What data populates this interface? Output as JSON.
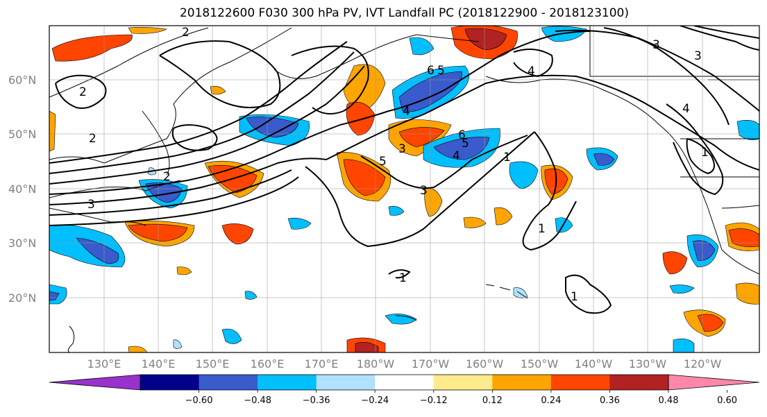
{
  "title": "2018122600 F030 300 hPa PV, IVT Landfall PC (2018122900 - 2018123100)",
  "lat_labels": [
    "60°N",
    "50°N",
    "40°N",
    "30°N",
    "20°N"
  ],
  "lon_labels": [
    "130°E",
    "140°E",
    "150°E",
    "160°E",
    "170°E",
    "180°W",
    "170°W",
    "160°W",
    "150°W",
    "140°W",
    "130°W",
    "120°W"
  ],
  "colorbar": {
    "colors": [
      "#9932CC",
      "#00008B",
      "#3A5BCB",
      "#00BFFF",
      "#B0E2FF",
      "#FFFFFF",
      "#FFEB8C",
      "#FFA500",
      "#FF4500",
      "#B22222",
      "#FF88AA"
    ],
    "tick_labels": [
      "−0.60",
      "−0.48",
      "−0.36",
      "−0.24",
      "−0.12",
      "0.12",
      "0.24",
      "0.36",
      "0.48",
      "0.60"
    ]
  },
  "contour_labels": [
    "2",
    "2",
    "2",
    "3",
    "5",
    "6",
    "6",
    "5",
    "4",
    "3",
    "4",
    "5",
    "3",
    "1",
    "1",
    "1",
    "1",
    "1",
    "4",
    "2",
    "4",
    "3",
    "3"
  ],
  "legend_colors": {
    "positive": [
      "#FFEB8C",
      "#FFA500",
      "#FF4500",
      "#B22222"
    ],
    "negative": [
      "#B0E2FF",
      "#00BFFF",
      "#3A5BCB",
      "#00008B"
    ]
  }
}
